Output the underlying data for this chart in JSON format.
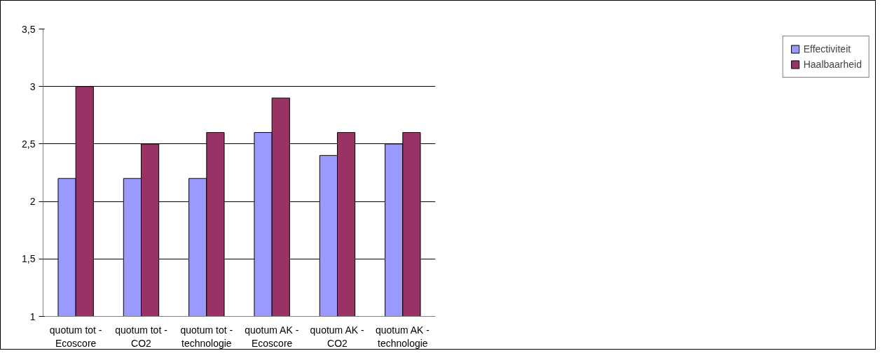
{
  "chart_data": {
    "type": "bar",
    "categories": [
      "quotum tot - Ecoscore",
      "quotum tot - CO2",
      "quotum tot - technologie",
      "quotum AK - Ecoscore",
      "quotum AK - CO2",
      "quotum AK - technologie"
    ],
    "series": [
      {
        "name": "Effectiviteit",
        "color": "#9999ff",
        "values": [
          2.2,
          2.2,
          2.2,
          2.6,
          2.4,
          2.5
        ]
      },
      {
        "name": "Haalbaarheid",
        "color": "#993366",
        "values": [
          3.0,
          2.5,
          2.6,
          2.9,
          2.6,
          2.6
        ]
      }
    ],
    "ylim": [
      1,
      3.5
    ],
    "yticks": [
      1,
      {
        "value": 1.5,
        "label": "1,5"
      },
      2,
      {
        "value": 2.5,
        "label": "2,5"
      },
      3,
      {
        "value": 3.5,
        "label": "3,5"
      }
    ],
    "grid": "y",
    "legend": "right"
  }
}
